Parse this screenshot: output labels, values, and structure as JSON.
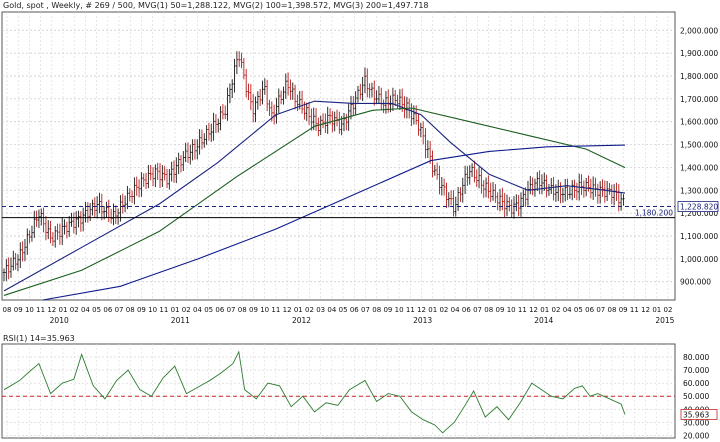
{
  "header": {
    "title": "Gold, spot , Weekly, # 269 / 500, MVG(1) 50=1,288.122, MVG(2) 100=1,398.572, MVG(3) 200=1,497.718"
  },
  "rsi_header": {
    "title": "RSI(1) 14=35.963"
  },
  "chart_data": [
    {
      "type": "ohlc",
      "title": "Gold, spot , Weekly, # 269 / 500, MVG(1) 50=1,288.122, MVG(2) 100=1,398.572, MVG(3) 200=1,497.718",
      "ylim": [
        820,
        2080
      ],
      "y_ticks": [
        "900.000",
        "1,000.000",
        "1,100.000",
        "1,200.000",
        "1,300.000",
        "1,400.000",
        "1,500.000",
        "1,600.000",
        "1,700.000",
        "1,800.000",
        "1,900.000",
        "2,000.000"
      ],
      "month_labels": [
        "08",
        "09",
        "10",
        "11",
        "12",
        "01",
        "02",
        "04",
        "05",
        "06",
        "07",
        "08",
        "09",
        "10",
        "11",
        "01",
        "02",
        "04",
        "05",
        "06",
        "07",
        "08",
        "09",
        "10",
        "11",
        "12",
        "01",
        "02",
        "03",
        "04",
        "05",
        "06",
        "07",
        "08",
        "09",
        "10",
        "11",
        "12",
        "01",
        "02",
        "04",
        "06",
        "07",
        "08",
        "09",
        "10",
        "11",
        "12",
        "01",
        "02",
        "04",
        "05",
        "06",
        "07",
        "08",
        "09",
        "11",
        "12",
        "01",
        "02"
      ],
      "year_labels": [
        "2010",
        "2011",
        "2012",
        "2013",
        "2014",
        "2015"
      ],
      "price_levels": [
        {
          "value": 1228.82,
          "label": "1,228.820",
          "style": "dashed",
          "color": "#1a237e"
        },
        {
          "value": 1180.2,
          "label": "1,180.200",
          "style": "solid",
          "color": "#000000"
        }
      ],
      "close_points": [
        {
          "x": 0,
          "y": 940
        },
        {
          "x": 8,
          "y": 1010
        },
        {
          "x": 14,
          "y": 1120
        },
        {
          "x": 18,
          "y": 1200
        },
        {
          "x": 24,
          "y": 1090
        },
        {
          "x": 32,
          "y": 1140
        },
        {
          "x": 40,
          "y": 1180
        },
        {
          "x": 48,
          "y": 1240
        },
        {
          "x": 56,
          "y": 1180
        },
        {
          "x": 62,
          "y": 1250
        },
        {
          "x": 70,
          "y": 1330
        },
        {
          "x": 78,
          "y": 1380
        },
        {
          "x": 84,
          "y": 1350
        },
        {
          "x": 92,
          "y": 1440
        },
        {
          "x": 100,
          "y": 1500
        },
        {
          "x": 108,
          "y": 1580
        },
        {
          "x": 114,
          "y": 1650
        },
        {
          "x": 118,
          "y": 1800
        },
        {
          "x": 121,
          "y": 1900
        },
        {
          "x": 124,
          "y": 1780
        },
        {
          "x": 128,
          "y": 1650
        },
        {
          "x": 134,
          "y": 1750
        },
        {
          "x": 138,
          "y": 1620
        },
        {
          "x": 142,
          "y": 1700
        },
        {
          "x": 146,
          "y": 1770
        },
        {
          "x": 150,
          "y": 1700
        },
        {
          "x": 156,
          "y": 1640
        },
        {
          "x": 162,
          "y": 1580
        },
        {
          "x": 168,
          "y": 1620
        },
        {
          "x": 174,
          "y": 1580
        },
        {
          "x": 180,
          "y": 1680
        },
        {
          "x": 186,
          "y": 1780
        },
        {
          "x": 190,
          "y": 1720
        },
        {
          "x": 196,
          "y": 1680
        },
        {
          "x": 202,
          "y": 1700
        },
        {
          "x": 208,
          "y": 1660
        },
        {
          "x": 214,
          "y": 1580
        },
        {
          "x": 218,
          "y": 1480
        },
        {
          "x": 221,
          "y": 1400
        },
        {
          "x": 224,
          "y": 1340
        },
        {
          "x": 228,
          "y": 1280
        },
        {
          "x": 232,
          "y": 1220
        },
        {
          "x": 236,
          "y": 1320
        },
        {
          "x": 240,
          "y": 1390
        },
        {
          "x": 246,
          "y": 1330
        },
        {
          "x": 252,
          "y": 1280
        },
        {
          "x": 258,
          "y": 1240
        },
        {
          "x": 262,
          "y": 1220
        },
        {
          "x": 266,
          "y": 1250
        },
        {
          "x": 272,
          "y": 1320
        },
        {
          "x": 276,
          "y": 1340
        },
        {
          "x": 282,
          "y": 1300
        },
        {
          "x": 290,
          "y": 1290
        },
        {
          "x": 298,
          "y": 1320
        },
        {
          "x": 306,
          "y": 1300
        },
        {
          "x": 314,
          "y": 1290
        },
        {
          "x": 320,
          "y": 1240
        }
      ],
      "series": [
        {
          "name": "MVG(1) 50",
          "color": "#1a237e",
          "points": [
            {
              "x": 0,
              "y": 860
            },
            {
              "x": 40,
              "y": 1050
            },
            {
              "x": 80,
              "y": 1240
            },
            {
              "x": 110,
              "y": 1420
            },
            {
              "x": 140,
              "y": 1630
            },
            {
              "x": 160,
              "y": 1690
            },
            {
              "x": 180,
              "y": 1680
            },
            {
              "x": 200,
              "y": 1680
            },
            {
              "x": 215,
              "y": 1630
            },
            {
              "x": 230,
              "y": 1510
            },
            {
              "x": 250,
              "y": 1370
            },
            {
              "x": 270,
              "y": 1300
            },
            {
              "x": 290,
              "y": 1320
            },
            {
              "x": 310,
              "y": 1300
            },
            {
              "x": 320,
              "y": 1288
            }
          ]
        },
        {
          "name": "MVG(2) 100",
          "color": "#1b5e20",
          "points": [
            {
              "x": 0,
              "y": 840
            },
            {
              "x": 40,
              "y": 950
            },
            {
              "x": 80,
              "y": 1120
            },
            {
              "x": 120,
              "y": 1360
            },
            {
              "x": 160,
              "y": 1580
            },
            {
              "x": 190,
              "y": 1650
            },
            {
              "x": 210,
              "y": 1660
            },
            {
              "x": 240,
              "y": 1600
            },
            {
              "x": 270,
              "y": 1540
            },
            {
              "x": 300,
              "y": 1480
            },
            {
              "x": 320,
              "y": 1399
            }
          ]
        },
        {
          "name": "MVG(3) 200",
          "color": "#0d1b8c",
          "points": [
            {
              "x": 20,
              "y": 820
            },
            {
              "x": 60,
              "y": 880
            },
            {
              "x": 100,
              "y": 1000
            },
            {
              "x": 140,
              "y": 1130
            },
            {
              "x": 180,
              "y": 1280
            },
            {
              "x": 220,
              "y": 1430
            },
            {
              "x": 250,
              "y": 1470
            },
            {
              "x": 280,
              "y": 1490
            },
            {
              "x": 320,
              "y": 1498
            }
          ]
        }
      ]
    },
    {
      "type": "line",
      "title": "RSI(1) 14=35.963",
      "ylim": [
        18,
        90
      ],
      "y_ticks": [
        "20.000",
        "30.000",
        "40.000",
        "50.000",
        "60.000",
        "70.000",
        "80.000"
      ],
      "reference_levels": [
        {
          "value": 50,
          "style": "dashed",
          "color": "#c62828"
        }
      ],
      "last_value_label": "35.963",
      "series": [
        {
          "name": "RSI(1) 14",
          "color": "#2e7d32",
          "points": [
            {
              "x": 0,
              "y": 55
            },
            {
              "x": 8,
              "y": 62
            },
            {
              "x": 14,
              "y": 70
            },
            {
              "x": 18,
              "y": 75
            },
            {
              "x": 24,
              "y": 52
            },
            {
              "x": 30,
              "y": 60
            },
            {
              "x": 36,
              "y": 63
            },
            {
              "x": 40,
              "y": 82
            },
            {
              "x": 46,
              "y": 58
            },
            {
              "x": 52,
              "y": 48
            },
            {
              "x": 58,
              "y": 62
            },
            {
              "x": 64,
              "y": 70
            },
            {
              "x": 70,
              "y": 55
            },
            {
              "x": 76,
              "y": 50
            },
            {
              "x": 82,
              "y": 64
            },
            {
              "x": 88,
              "y": 73
            },
            {
              "x": 94,
              "y": 52
            },
            {
              "x": 100,
              "y": 57
            },
            {
              "x": 106,
              "y": 62
            },
            {
              "x": 112,
              "y": 68
            },
            {
              "x": 118,
              "y": 75
            },
            {
              "x": 121,
              "y": 84
            },
            {
              "x": 124,
              "y": 55
            },
            {
              "x": 130,
              "y": 48
            },
            {
              "x": 136,
              "y": 60
            },
            {
              "x": 142,
              "y": 58
            },
            {
              "x": 148,
              "y": 42
            },
            {
              "x": 154,
              "y": 50
            },
            {
              "x": 160,
              "y": 38
            },
            {
              "x": 166,
              "y": 45
            },
            {
              "x": 172,
              "y": 43
            },
            {
              "x": 178,
              "y": 55
            },
            {
              "x": 186,
              "y": 62
            },
            {
              "x": 192,
              "y": 46
            },
            {
              "x": 198,
              "y": 52
            },
            {
              "x": 204,
              "y": 50
            },
            {
              "x": 210,
              "y": 38
            },
            {
              "x": 216,
              "y": 32
            },
            {
              "x": 222,
              "y": 28
            },
            {
              "x": 226,
              "y": 22
            },
            {
              "x": 232,
              "y": 30
            },
            {
              "x": 238,
              "y": 44
            },
            {
              "x": 242,
              "y": 54
            },
            {
              "x": 248,
              "y": 34
            },
            {
              "x": 254,
              "y": 42
            },
            {
              "x": 260,
              "y": 32
            },
            {
              "x": 266,
              "y": 45
            },
            {
              "x": 272,
              "y": 60
            },
            {
              "x": 276,
              "y": 56
            },
            {
              "x": 282,
              "y": 50
            },
            {
              "x": 288,
              "y": 48
            },
            {
              "x": 294,
              "y": 56
            },
            {
              "x": 298,
              "y": 58
            },
            {
              "x": 302,
              "y": 50
            },
            {
              "x": 306,
              "y": 52
            },
            {
              "x": 312,
              "y": 48
            },
            {
              "x": 318,
              "y": 44
            },
            {
              "x": 320,
              "y": 36
            }
          ]
        }
      ]
    }
  ]
}
